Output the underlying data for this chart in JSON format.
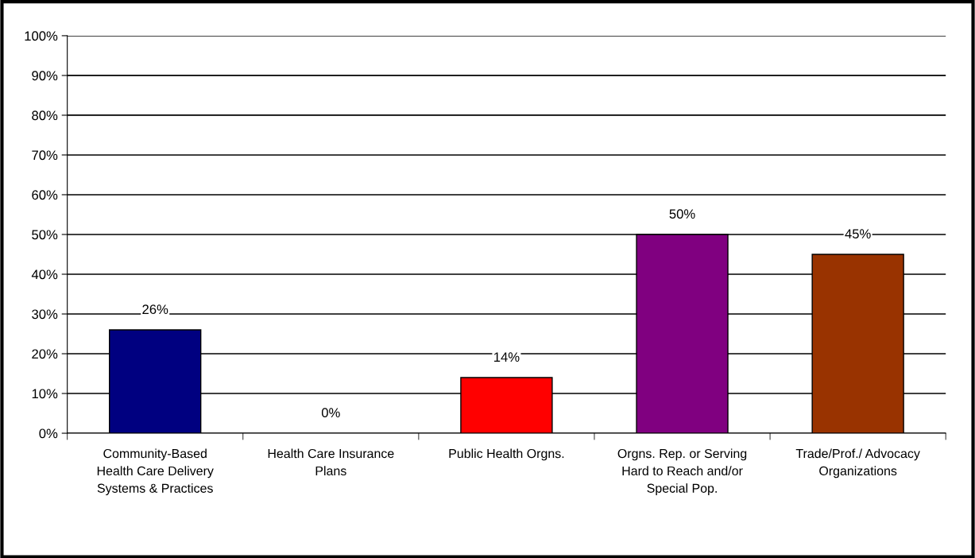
{
  "chart_data": {
    "type": "bar",
    "categories": [
      "Community-Based\nHealth Care Delivery\nSystems & Practices",
      "Health Care Insurance\nPlans",
      "Public Health Orgns.",
      "Orgns. Rep. or Serving\nHard to Reach and/or\nSpecial Pop.",
      "Trade/Prof./ Advocacy\nOrganizations"
    ],
    "values": [
      26,
      0,
      14,
      50,
      45
    ],
    "colors": [
      "#000080",
      null,
      "#ff0000",
      "#800080",
      "#993300"
    ],
    "value_labels": [
      "26%",
      "0%",
      "14%",
      "50%",
      "45%"
    ],
    "ylim": [
      0,
      100
    ],
    "yticks": [
      {
        "value": 0,
        "label": "0%"
      },
      {
        "value": 10,
        "label": "10%"
      },
      {
        "value": 20,
        "label": "20%"
      },
      {
        "value": 30,
        "label": "30%"
      },
      {
        "value": 40,
        "label": "40%"
      },
      {
        "value": 50,
        "label": "50%"
      },
      {
        "value": 60,
        "label": "60%"
      },
      {
        "value": 70,
        "label": "70%"
      },
      {
        "value": 80,
        "label": "80%"
      },
      {
        "value": 90,
        "label": "90%"
      },
      {
        "value": 100,
        "label": "100%"
      }
    ],
    "grid": "y",
    "legend": false
  }
}
